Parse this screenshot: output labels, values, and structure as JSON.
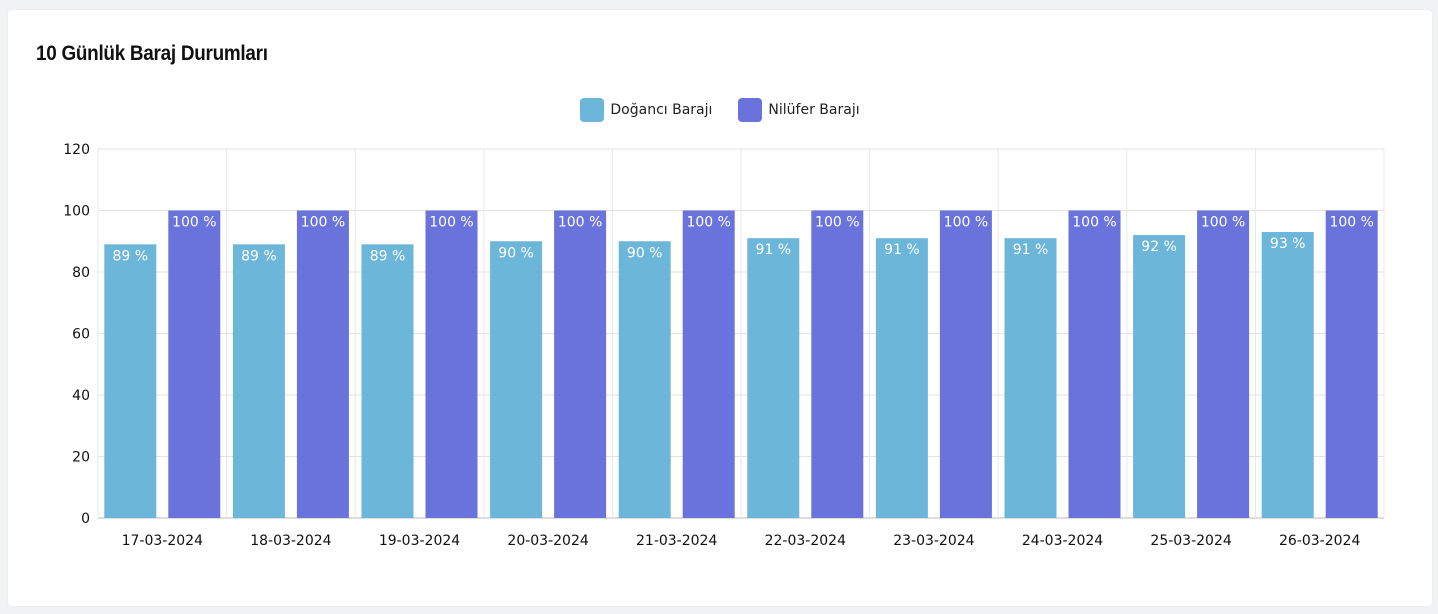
{
  "card": {
    "title": "10 Günlük Baraj Durumları"
  },
  "legend": {
    "items": [
      {
        "label": "Doğancı Barajı",
        "color": "#6cb6d9"
      },
      {
        "label": "Nilüfer Barajı",
        "color": "#6a73db"
      }
    ]
  },
  "chart_data": {
    "type": "bar",
    "title": "",
    "xlabel": "",
    "ylabel": "",
    "ylim": [
      0,
      120
    ],
    "yticks": [
      0,
      20,
      40,
      60,
      80,
      100,
      120
    ],
    "categories": [
      "17-03-2024",
      "18-03-2024",
      "19-03-2024",
      "20-03-2024",
      "21-03-2024",
      "22-03-2024",
      "23-03-2024",
      "24-03-2024",
      "25-03-2024",
      "26-03-2024"
    ],
    "series": [
      {
        "name": "Doğancı Barajı",
        "color": "#6cb6d9",
        "values": [
          89,
          89,
          89,
          90,
          90,
          91,
          91,
          91,
          92,
          93
        ]
      },
      {
        "name": "Nilüfer Barajı",
        "color": "#6a73db",
        "values": [
          100,
          100,
          100,
          100,
          100,
          100,
          100,
          100,
          100,
          100
        ]
      }
    ],
    "data_label_suffix": " %",
    "legend_position": "top-center",
    "grid": true
  }
}
